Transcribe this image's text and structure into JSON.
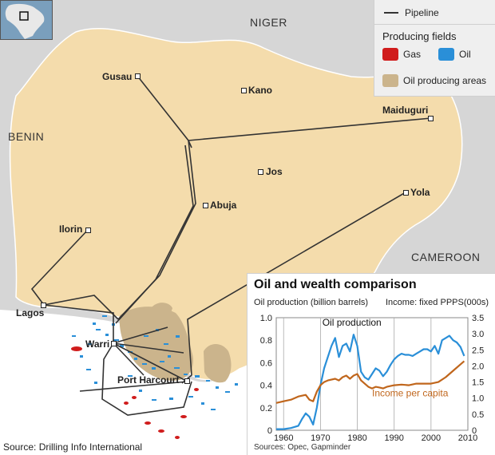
{
  "map": {
    "countries": [
      {
        "name": "NIGER",
        "key": "niger"
      },
      {
        "name": "BENIN",
        "key": "benin"
      },
      {
        "name": "CAMEROON",
        "key": "cameroon"
      }
    ],
    "cities": [
      {
        "name": "Gusau",
        "key": "gusau"
      },
      {
        "name": "Kano",
        "key": "kano"
      },
      {
        "name": "Maiduguri",
        "key": "maiduguri"
      },
      {
        "name": "Jos",
        "key": "jos"
      },
      {
        "name": "Abuja",
        "key": "abuja"
      },
      {
        "name": "Yola",
        "key": "yola"
      },
      {
        "name": "Ilorin",
        "key": "ilorin"
      },
      {
        "name": "Lagos",
        "key": "lagos"
      },
      {
        "name": "Warri",
        "key": "warri"
      },
      {
        "name": "Port Harcourt",
        "key": "port-harcourt"
      }
    ],
    "colors": {
      "nigeria": "#f4dcac",
      "neighbors": "#d6d6d6",
      "sea": "#ffffff",
      "producing_area": "#cbb48c",
      "pipeline": "#333333",
      "gas": "#d01c1c",
      "oil": "#2a8fd8"
    }
  },
  "legend": {
    "pipeline_label": "Pipeline",
    "producing_fields_title": "Producing fields",
    "gas_label": "Gas",
    "oil_label": "Oil",
    "producing_areas_label": "Oil producing areas"
  },
  "source": "Source: Drilling Info International",
  "chart_data": {
    "type": "line",
    "title": "Oil and wealth comparison",
    "left_axis_label": "Oil production (billion barrels)",
    "right_axis_label": "Income: fixed PPPS(000s)",
    "x_ticks": [
      "1960",
      "1970",
      "1980",
      "1990",
      "2000",
      "2010"
    ],
    "y_left_ticks": [
      "0",
      "0.2",
      "0.4",
      "0.6",
      "0.8",
      "1.0"
    ],
    "y_right_ticks": [
      "0",
      "0.5",
      "1.0",
      "1.5",
      "2.0",
      "2.5",
      "3.0",
      "3.5"
    ],
    "xlim": [
      1958,
      2010
    ],
    "ylim_left": [
      0,
      1.0
    ],
    "ylim_right": [
      0,
      3.5
    ],
    "series": [
      {
        "name": "Oil production",
        "axis": "left",
        "color": "#2a8fd8",
        "x": [
          1958,
          1960,
          1962,
          1964,
          1965,
          1966,
          1967,
          1968,
          1969,
          1970,
          1971,
          1972,
          1973,
          1974,
          1975,
          1976,
          1977,
          1978,
          1979,
          1980,
          1981,
          1982,
          1983,
          1984,
          1985,
          1986,
          1987,
          1988,
          1989,
          1990,
          1991,
          1992,
          1993,
          1994,
          1995,
          1996,
          1997,
          1998,
          1999,
          2000,
          2001,
          2002,
          2003,
          2004,
          2005,
          2006,
          2007,
          2008,
          2009
        ],
        "y": [
          0.01,
          0.01,
          0.02,
          0.04,
          0.1,
          0.15,
          0.12,
          0.05,
          0.2,
          0.4,
          0.55,
          0.65,
          0.75,
          0.82,
          0.65,
          0.75,
          0.77,
          0.7,
          0.85,
          0.75,
          0.52,
          0.47,
          0.45,
          0.5,
          0.55,
          0.53,
          0.48,
          0.52,
          0.58,
          0.63,
          0.66,
          0.68,
          0.67,
          0.67,
          0.66,
          0.68,
          0.7,
          0.72,
          0.72,
          0.7,
          0.75,
          0.68,
          0.8,
          0.82,
          0.84,
          0.8,
          0.78,
          0.74,
          0.66
        ]
      },
      {
        "name": "Income per capita",
        "axis": "right",
        "color": "#c0661c",
        "x": [
          1958,
          1960,
          1962,
          1964,
          1966,
          1967,
          1968,
          1969,
          1970,
          1971,
          1972,
          1974,
          1975,
          1976,
          1977,
          1978,
          1979,
          1980,
          1981,
          1982,
          1983,
          1984,
          1985,
          1986,
          1987,
          1988,
          1990,
          1992,
          1994,
          1996,
          1998,
          2000,
          2002,
          2004,
          2006,
          2008,
          2009
        ],
        "y": [
          0.85,
          0.9,
          0.95,
          1.05,
          1.1,
          0.95,
          0.9,
          1.2,
          1.4,
          1.5,
          1.55,
          1.6,
          1.55,
          1.65,
          1.7,
          1.6,
          1.7,
          1.75,
          1.55,
          1.45,
          1.35,
          1.3,
          1.35,
          1.33,
          1.3,
          1.35,
          1.4,
          1.42,
          1.4,
          1.45,
          1.45,
          1.45,
          1.5,
          1.65,
          1.85,
          2.05,
          2.15
        ]
      }
    ],
    "annotations": [
      {
        "text": "Oil production",
        "series": "Oil production"
      },
      {
        "text": "Income per capita",
        "series": "Income per capita"
      }
    ],
    "source": "Sources: Opec, Gapminder"
  }
}
